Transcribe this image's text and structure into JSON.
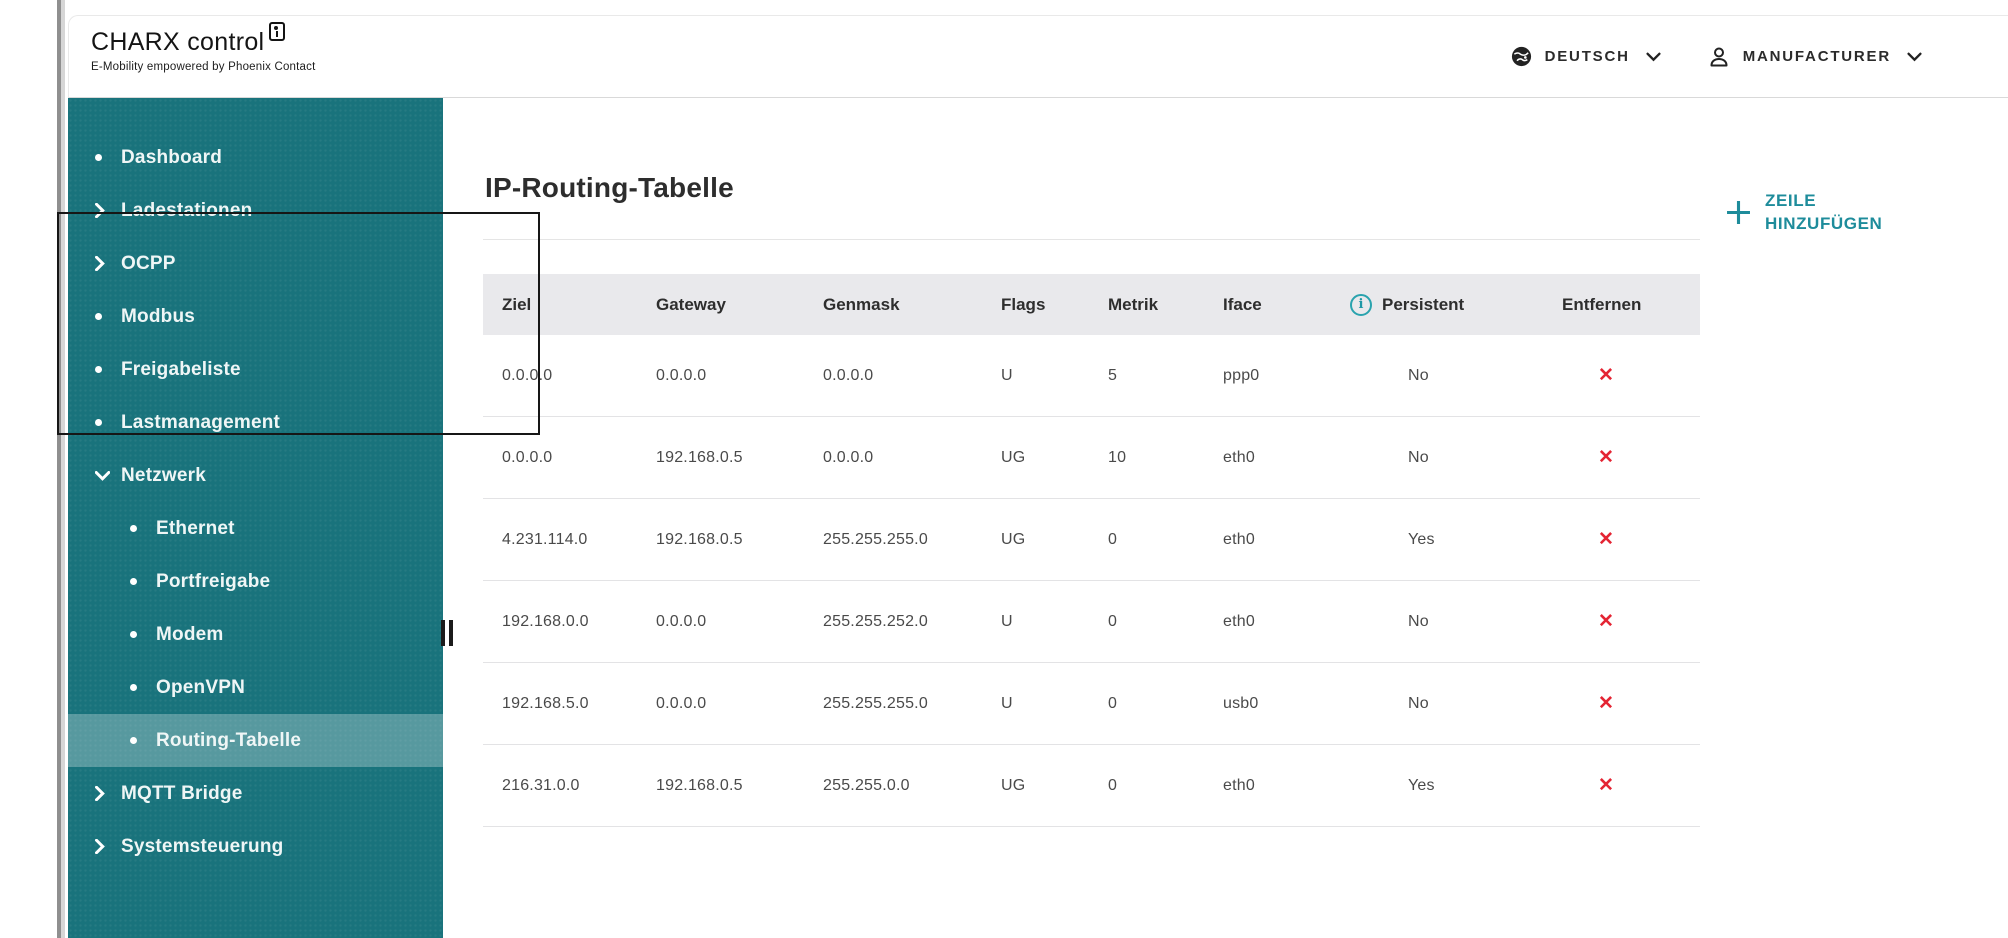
{
  "header": {
    "logo": {
      "title": "CHARX control",
      "subtitle": "E-Mobility empowered by Phoenix Contact"
    },
    "language_menu": {
      "label": "DEUTSCH"
    },
    "account_menu": {
      "label": "MANUFACTURER"
    }
  },
  "sidebar": {
    "items": [
      {
        "label": "Dashboard",
        "marker": "bullet",
        "level": 1,
        "active": false
      },
      {
        "label": "Ladestationen",
        "marker": "chevron-right",
        "level": 1,
        "active": false
      },
      {
        "label": "OCPP",
        "marker": "chevron-right",
        "level": 1,
        "active": false
      },
      {
        "label": "Modbus",
        "marker": "bullet",
        "level": 1,
        "active": false
      },
      {
        "label": "Freigabeliste",
        "marker": "bullet",
        "level": 1,
        "active": false
      },
      {
        "label": "Lastmanagement",
        "marker": "bullet",
        "level": 1,
        "active": false
      },
      {
        "label": "Netzwerk",
        "marker": "chevron-down",
        "level": 1,
        "active": false
      },
      {
        "label": "Ethernet",
        "marker": "bullet",
        "level": 2,
        "active": false
      },
      {
        "label": "Portfreigabe",
        "marker": "bullet",
        "level": 2,
        "active": false
      },
      {
        "label": "Modem",
        "marker": "bullet",
        "level": 2,
        "active": false
      },
      {
        "label": "OpenVPN",
        "marker": "bullet",
        "level": 2,
        "active": false
      },
      {
        "label": "Routing-Tabelle",
        "marker": "bullet",
        "level": 2,
        "active": true
      },
      {
        "label": "MQTT Bridge",
        "marker": "chevron-right",
        "level": 1,
        "active": false
      },
      {
        "label": "Systemsteuerung",
        "marker": "chevron-right",
        "level": 1,
        "active": false
      }
    ]
  },
  "main": {
    "title": "IP-Routing-Tabelle",
    "add_row_button": {
      "line1": "ZEILE",
      "line2": "HINZUFÜGEN"
    },
    "table": {
      "columns": [
        "Ziel",
        "Gateway",
        "Genmask",
        "Flags",
        "Metrik",
        "Iface",
        "Persistent",
        "Entfernen"
      ],
      "info_glyph": "i",
      "remove_glyph": "✕",
      "rows": [
        {
          "ziel": "0.0.0.0",
          "gateway": "0.0.0.0",
          "genmask": "0.0.0.0",
          "flags": "U",
          "metrik": "5",
          "iface": "ppp0",
          "persistent": "No"
        },
        {
          "ziel": "0.0.0.0",
          "gateway": "192.168.0.5",
          "genmask": "0.0.0.0",
          "flags": "UG",
          "metrik": "10",
          "iface": "eth0",
          "persistent": "No"
        },
        {
          "ziel": "4.231.114.0",
          "gateway": "192.168.0.5",
          "genmask": "255.255.255.0",
          "flags": "UG",
          "metrik": "0",
          "iface": "eth0",
          "persistent": "Yes"
        },
        {
          "ziel": "192.168.0.0",
          "gateway": "0.0.0.0",
          "genmask": "255.255.252.0",
          "flags": "U",
          "metrik": "0",
          "iface": "eth0",
          "persistent": "No"
        },
        {
          "ziel": "192.168.5.0",
          "gateway": "0.0.0.0",
          "genmask": "255.255.255.0",
          "flags": "U",
          "metrik": "0",
          "iface": "usb0",
          "persistent": "No"
        },
        {
          "ziel": "216.31.0.0",
          "gateway": "192.168.0.5",
          "genmask": "255.255.0.0",
          "flags": "UG",
          "metrik": "0",
          "iface": "eth0",
          "persistent": "Yes"
        }
      ]
    }
  },
  "colors": {
    "sidebar_bg": "#19737c",
    "accent_teal": "#1e8c9b",
    "delete_red": "#e42433",
    "table_header_bg": "#e9e9ec"
  }
}
